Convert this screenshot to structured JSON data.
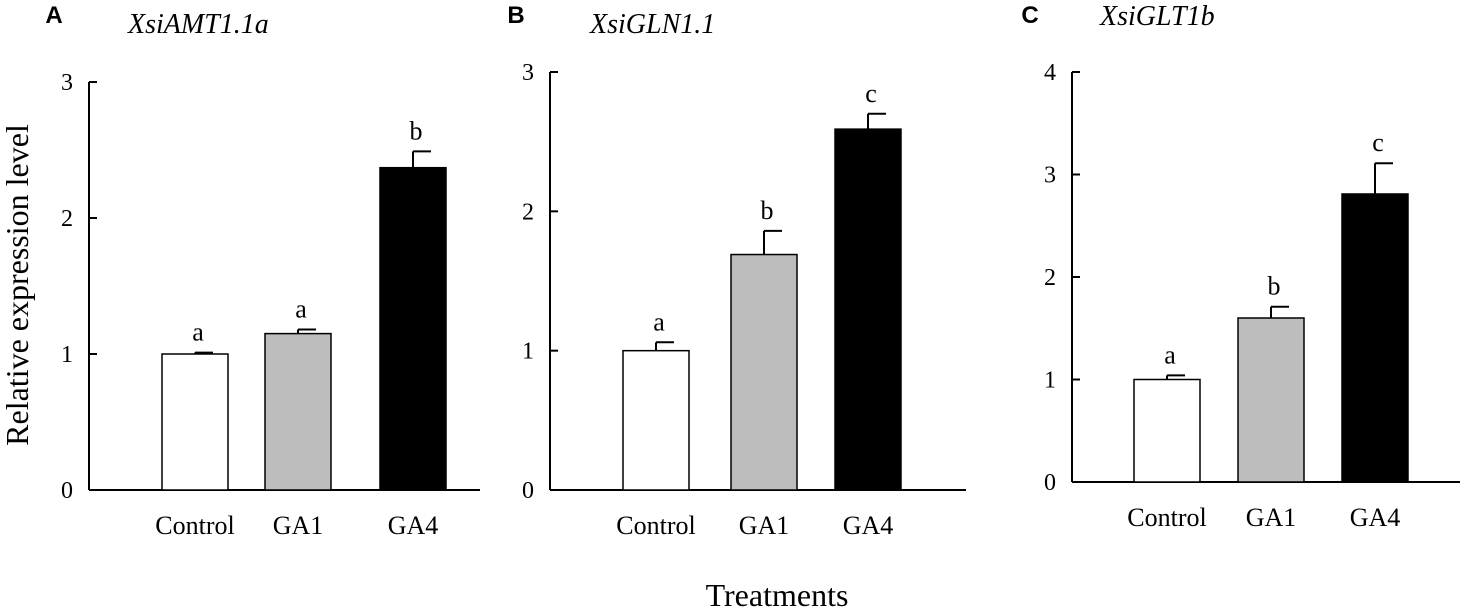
{
  "figure": {
    "ylabel": "Relative expression level",
    "xlabel": "Treatments"
  },
  "chart_data": [
    {
      "type": "bar",
      "panel": "A",
      "title": "XsiAMT1.1a",
      "categories": [
        "Control",
        "GA1",
        "GA4"
      ],
      "values": [
        1.0,
        1.15,
        2.37
      ],
      "errors": [
        0.01,
        0.03,
        0.12
      ],
      "significance": [
        "a",
        "a",
        "b"
      ],
      "bar_colors": [
        "#ffffff",
        "#bdbdbd",
        "#000000"
      ],
      "ylim": [
        0,
        3
      ],
      "yticks": [
        0,
        1,
        2,
        3
      ],
      "ylabel": "Relative expression level",
      "xlabel": ""
    },
    {
      "type": "bar",
      "panel": "B",
      "title": "XsiGLN1.1",
      "categories": [
        "Control",
        "GA1",
        "GA4"
      ],
      "values": [
        1.0,
        1.69,
        2.59
      ],
      "errors": [
        0.06,
        0.17,
        0.11
      ],
      "significance": [
        "a",
        "b",
        "c"
      ],
      "bar_colors": [
        "#ffffff",
        "#bdbdbd",
        "#000000"
      ],
      "ylim": [
        0,
        3
      ],
      "yticks": [
        0,
        1,
        2,
        3
      ],
      "ylabel": "",
      "xlabel": ""
    },
    {
      "type": "bar",
      "panel": "C",
      "title": "XsiGLT1b",
      "categories": [
        "Control",
        "GA1",
        "GA4"
      ],
      "values": [
        1.0,
        1.6,
        2.81
      ],
      "errors": [
        0.04,
        0.11,
        0.3
      ],
      "significance": [
        "a",
        "b",
        "c"
      ],
      "bar_colors": [
        "#ffffff",
        "#bdbdbd",
        "#000000"
      ],
      "ylim": [
        0,
        4
      ],
      "yticks": [
        0,
        1,
        2,
        3,
        4
      ],
      "ylabel": "",
      "xlabel": ""
    }
  ]
}
